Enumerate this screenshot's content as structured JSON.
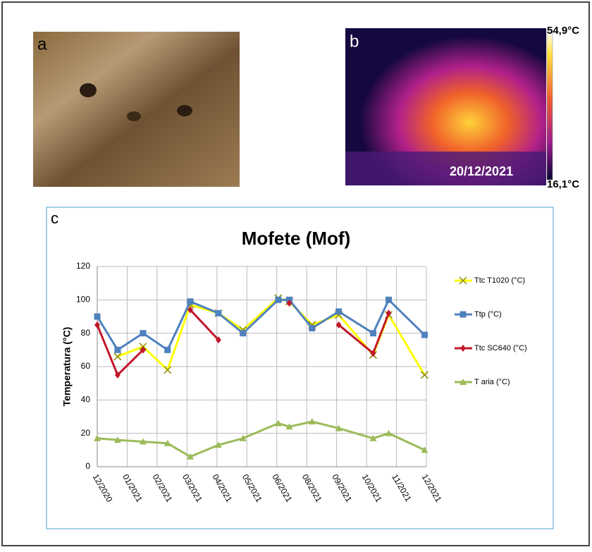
{
  "panels": {
    "a": "a",
    "b": "b",
    "c": "c",
    "thermal_max": "54,9°C",
    "thermal_min": "16,1°C",
    "thermal_date": "20/12/2021"
  },
  "chart_data": {
    "type": "line",
    "title": "Mofete (Mof)",
    "y_label": "Temperatura (°C)",
    "x": [
      0,
      0.68,
      1.53,
      2.35,
      3.11,
      4.05,
      4.87,
      6.05,
      6.42,
      7.18,
      8.07,
      9.22,
      9.74,
      10.94
    ],
    "xlim": [
      0,
      11
    ],
    "xticks": [
      {
        "value": 0,
        "label": "12/2020"
      },
      {
        "value": 1,
        "label": "01/2021"
      },
      {
        "value": 2,
        "label": "02/2021"
      },
      {
        "value": 3,
        "label": "03/2021"
      },
      {
        "value": 4,
        "label": "04/2021"
      },
      {
        "value": 5,
        "label": "05/2021"
      },
      {
        "value": 6,
        "label": "06/2021"
      },
      {
        "value": 7,
        "label": "08/2021"
      },
      {
        "value": 8,
        "label": "09/2021"
      },
      {
        "value": 9,
        "label": "10/2021"
      },
      {
        "value": 10,
        "label": "11/2021"
      },
      {
        "value": 11,
        "label": "12/2021"
      }
    ],
    "ylim": [
      0,
      120
    ],
    "yticks": [
      0,
      20,
      40,
      60,
      80,
      100,
      120
    ],
    "grid": true,
    "legend": "right",
    "series": [
      {
        "name": "Ttc T1020 (°C)",
        "color": "#ffff00",
        "marker": "x",
        "values": [
          null,
          66,
          72,
          58,
          97,
          92,
          82,
          101,
          99,
          85,
          91,
          67,
          91,
          55
        ]
      },
      {
        "name": "Ttp (°C)",
        "color": "#4f81bd",
        "marker": "square",
        "values": [
          90,
          70,
          80,
          70,
          99,
          92,
          80,
          100,
          100,
          83,
          93,
          80,
          100,
          79
        ]
      },
      {
        "name": "Ttc SC640 (°C)",
        "color": "#c0182a",
        "marker": "diamond",
        "values": [
          85,
          55,
          70,
          null,
          94,
          76,
          null,
          null,
          98,
          null,
          85,
          68,
          92,
          null
        ]
      },
      {
        "name": "T aria (°C)",
        "color": "#9bbb59",
        "marker": "triangle",
        "values": [
          17,
          16,
          15,
          14,
          6,
          13,
          17,
          26,
          24,
          27,
          23,
          17,
          20,
          10
        ]
      }
    ]
  }
}
